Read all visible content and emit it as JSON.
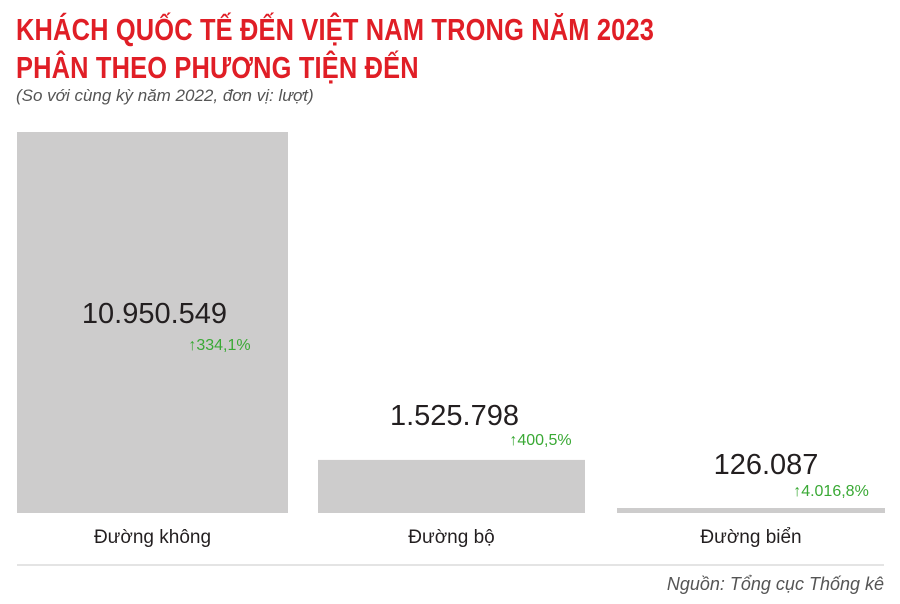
{
  "title_line1": "KHÁCH QUỐC TẾ ĐẾN VIỆT NAM TRONG NĂM 2023",
  "title_line2": "PHÂN THEO PHƯƠNG TIỆN ĐẾN",
  "subtitle": "(So với cùng kỳ năm 2022, đơn vị: lượt)",
  "source": "Nguồn: Tổng cục Thống kê",
  "colors": {
    "title": "#e01e26",
    "bar": "#cdcccc",
    "growth": "#3aa935",
    "value_text": "#231f20",
    "axis": "#c8c8c8"
  },
  "chart_data": {
    "type": "bar",
    "categories": [
      "Đường không",
      "Đường bộ",
      "Đường biển"
    ],
    "values": [
      10950549,
      1525798,
      126087
    ],
    "value_labels": [
      "10.950.549",
      "1.525.798",
      "126.087"
    ],
    "growth_labels": [
      "334,1%",
      "400,5%",
      "4.016,8%"
    ],
    "growth_arrow": "↑",
    "ylim": [
      0,
      10950549
    ],
    "grid": false,
    "legend": "none"
  }
}
